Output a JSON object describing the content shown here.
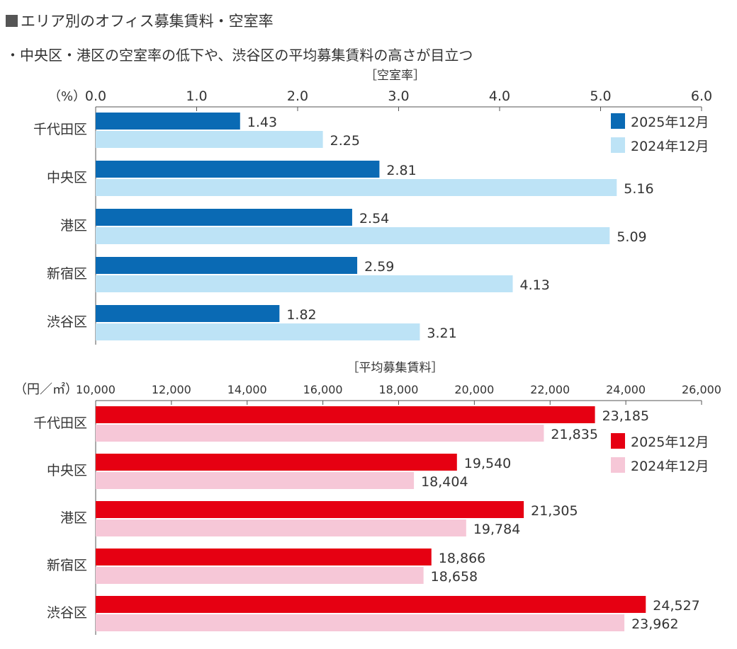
{
  "header": {
    "title": "エリア別のオフィス募集賃料・空室率",
    "subtitle": "・中央区・港区の空室率の低下や、渋谷区の平均募集賃料の高さが目立つ"
  },
  "colors": {
    "vacancy_2025": "#0a6ab4",
    "vacancy_2024": "#bde3f6",
    "rent_2025": "#e60012",
    "rent_2024": "#f6c7d7",
    "axis": "#555555"
  },
  "chart_data": [
    {
      "type": "bar",
      "orientation": "horizontal",
      "title": "［空室率］",
      "unit_label": "（%）",
      "categories": [
        "千代田区",
        "中央区",
        "港区",
        "新宿区",
        "渋谷区"
      ],
      "series": [
        {
          "name": "2025年12月",
          "values": [
            1.43,
            2.81,
            2.54,
            2.59,
            1.82
          ],
          "labels": [
            "1.43",
            "2.81",
            "2.54",
            "2.59",
            "1.82"
          ]
        },
        {
          "name": "2024年12月",
          "values": [
            2.25,
            5.16,
            5.09,
            4.13,
            3.21
          ],
          "labels": [
            "2.25",
            "5.16",
            "5.09",
            "4.13",
            "3.21"
          ]
        }
      ],
      "xlim": [
        0,
        6
      ],
      "ticks": [
        0,
        1,
        2,
        3,
        4,
        5,
        6
      ],
      "tick_labels": [
        "0.0",
        "1.0",
        "2.0",
        "3.0",
        "4.0",
        "5.0",
        "6.0"
      ],
      "legend_position": "right",
      "grid": false
    },
    {
      "type": "bar",
      "orientation": "horizontal",
      "title": "［平均募集賃料］",
      "unit_label": "（円／㎡）",
      "categories": [
        "千代田区",
        "中央区",
        "港区",
        "新宿区",
        "渋谷区"
      ],
      "series": [
        {
          "name": "2025年12月",
          "values": [
            23185,
            19540,
            21305,
            18866,
            24527
          ],
          "labels": [
            "23,185",
            "19,540",
            "21,305",
            "18,866",
            "24,527"
          ]
        },
        {
          "name": "2024年12月",
          "values": [
            21835,
            18404,
            19784,
            18658,
            23962
          ],
          "labels": [
            "21,835",
            "18,404",
            "19,784",
            "18,658",
            "23,962"
          ]
        }
      ],
      "xlim": [
        10000,
        26000
      ],
      "ticks": [
        10000,
        12000,
        14000,
        16000,
        18000,
        20000,
        22000,
        24000,
        26000
      ],
      "tick_labels": [
        "10,000",
        "12,000",
        "14,000",
        "16,000",
        "18,000",
        "20,000",
        "22,000",
        "24,000",
        "26,000"
      ],
      "legend_position": "right",
      "grid": false
    }
  ]
}
